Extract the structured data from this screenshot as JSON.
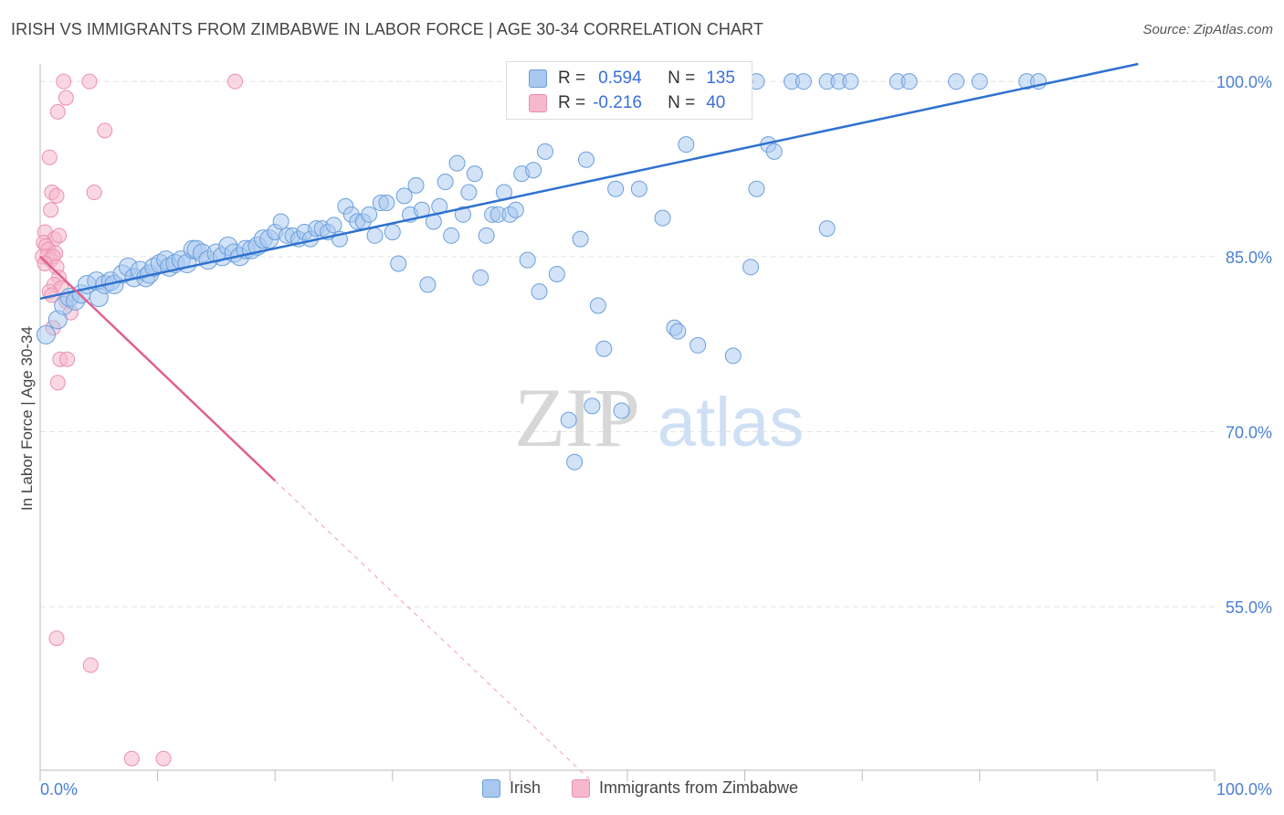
{
  "title": "IRISH VS IMMIGRANTS FROM ZIMBABWE IN LABOR FORCE | AGE 30-34 CORRELATION CHART",
  "source": "Source: ZipAtlas.com",
  "colors": {
    "irish_fill": "#a8c8f0",
    "irish_stroke": "#6a9fdc",
    "irish_line": "#2f72cf",
    "zim_fill": "#f6b8cc",
    "zim_stroke": "#ec8faf",
    "zim_line": "#e0608c",
    "axis_text": "#4a7fd4",
    "grid": "#e4e4e4"
  },
  "watermark": {
    "zip": "ZIP",
    "atlas": "atlas"
  },
  "stats": {
    "irish": {
      "r_label": "R =",
      "r_value": "0.594",
      "n_label": "N =",
      "n_value": "135"
    },
    "zim": {
      "r_label": "R =",
      "r_value": "-0.216",
      "n_label": "N =",
      "n_value": "40"
    }
  },
  "legend": {
    "irish": "Irish",
    "zim": "Immigrants from Zimbabwe"
  },
  "chart_data": {
    "type": "scatter",
    "title": "IRISH VS IMMIGRANTS FROM ZIMBABWE IN LABOR FORCE | AGE 30-34 CORRELATION CHART",
    "xlabel": "",
    "ylabel": "In Labor Force | Age 30-34",
    "xlim": [
      0,
      100
    ],
    "ylim": [
      41,
      101.5
    ],
    "x_ticks_labels": [
      "0.0%",
      "100.0%"
    ],
    "y_ticks": [
      55,
      70,
      85,
      100
    ],
    "y_tick_labels": [
      "55.0%",
      "70.0%",
      "85.0%",
      "100.0%"
    ],
    "grid": true,
    "series": [
      {
        "name": "Irish",
        "R": 0.594,
        "N": 135,
        "trend": {
          "x": [
            0,
            93.5
          ],
          "y": [
            81.4,
            101.5
          ]
        },
        "points": [
          [
            0.5,
            78.3
          ],
          [
            1.5,
            79.6
          ],
          [
            2,
            80.8
          ],
          [
            2.5,
            81.5
          ],
          [
            3,
            81.2
          ],
          [
            3.5,
            81.8
          ],
          [
            4,
            82.6
          ],
          [
            4.8,
            82.9
          ],
          [
            5,
            81.5
          ],
          [
            5.5,
            82.6
          ],
          [
            6,
            82.9
          ],
          [
            6.3,
            82.6
          ],
          [
            7,
            83.5
          ],
          [
            7.5,
            84.1
          ],
          [
            8,
            83.2
          ],
          [
            8.5,
            83.8
          ],
          [
            9,
            83.2
          ],
          [
            9.3,
            83.5
          ],
          [
            9.7,
            84.1
          ],
          [
            10.2,
            84.4
          ],
          [
            10.7,
            84.7
          ],
          [
            11,
            84.1
          ],
          [
            11.5,
            84.4
          ],
          [
            12,
            84.7
          ],
          [
            12.5,
            84.4
          ],
          [
            13,
            85.6
          ],
          [
            13.3,
            85.6
          ],
          [
            13.8,
            85.3
          ],
          [
            14.3,
            84.7
          ],
          [
            15,
            85.3
          ],
          [
            15.5,
            85.0
          ],
          [
            16,
            85.9
          ],
          [
            16.5,
            85.3
          ],
          [
            17,
            85.0
          ],
          [
            17.5,
            85.6
          ],
          [
            18,
            85.6
          ],
          [
            18.5,
            85.9
          ],
          [
            19,
            86.5
          ],
          [
            19.5,
            86.5
          ],
          [
            20,
            87.1
          ],
          [
            20.5,
            88.0
          ],
          [
            21,
            86.8
          ],
          [
            21.5,
            86.8
          ],
          [
            22,
            86.5
          ],
          [
            22.5,
            87.1
          ],
          [
            23,
            86.5
          ],
          [
            23.5,
            87.4
          ],
          [
            24,
            87.4
          ],
          [
            24.5,
            87.1
          ],
          [
            25,
            87.7
          ],
          [
            25.5,
            86.5
          ],
          [
            26,
            89.3
          ],
          [
            26.5,
            88.6
          ],
          [
            27,
            88.0
          ],
          [
            27.5,
            88.0
          ],
          [
            28,
            88.6
          ],
          [
            28.5,
            86.8
          ],
          [
            29,
            89.6
          ],
          [
            29.5,
            89.6
          ],
          [
            30,
            87.1
          ],
          [
            30.5,
            84.4
          ],
          [
            31,
            90.2
          ],
          [
            31.5,
            88.6
          ],
          [
            32,
            91.1
          ],
          [
            32.5,
            89.0
          ],
          [
            33,
            82.6
          ],
          [
            33.5,
            88.0
          ],
          [
            34,
            89.3
          ],
          [
            34.5,
            91.4
          ],
          [
            35,
            86.8
          ],
          [
            35.5,
            93.0
          ],
          [
            36,
            88.6
          ],
          [
            36.5,
            90.5
          ],
          [
            37,
            92.1
          ],
          [
            37.5,
            83.2
          ],
          [
            38,
            86.8
          ],
          [
            38.5,
            88.6
          ],
          [
            39,
            88.6
          ],
          [
            39.5,
            90.5
          ],
          [
            40,
            88.6
          ],
          [
            40.5,
            89.0
          ],
          [
            41,
            92.1
          ],
          [
            41.5,
            84.7
          ],
          [
            42,
            92.4
          ],
          [
            42.5,
            82.0
          ],
          [
            43,
            94.0
          ],
          [
            44,
            83.5
          ],
          [
            45,
            71.0
          ],
          [
            45.5,
            67.4
          ],
          [
            46,
            86.5
          ],
          [
            46.5,
            93.3
          ],
          [
            47,
            72.2
          ],
          [
            47.5,
            80.8
          ],
          [
            48,
            77.1
          ],
          [
            49,
            90.8
          ],
          [
            49.5,
            71.8
          ],
          [
            51,
            90.8
          ],
          [
            53,
            88.3
          ],
          [
            54,
            78.9
          ],
          [
            54.3,
            78.6
          ],
          [
            55,
            94.6
          ],
          [
            56,
            77.4
          ],
          [
            59,
            76.5
          ],
          [
            60.5,
            84.1
          ],
          [
            61,
            90.8
          ],
          [
            62,
            94.6
          ],
          [
            62.5,
            94.0
          ],
          [
            67,
            87.4
          ],
          [
            50,
            100
          ],
          [
            51,
            100
          ],
          [
            52,
            100
          ],
          [
            53,
            100
          ],
          [
            54,
            100
          ],
          [
            55,
            100
          ],
          [
            56,
            100
          ],
          [
            57,
            100
          ],
          [
            58,
            100
          ],
          [
            59,
            100
          ],
          [
            60,
            100
          ],
          [
            61,
            100
          ],
          [
            64,
            100
          ],
          [
            65,
            100
          ],
          [
            67,
            100
          ],
          [
            68,
            100
          ],
          [
            69,
            100
          ],
          [
            73,
            100
          ],
          [
            74,
            100
          ],
          [
            78,
            100
          ],
          [
            80,
            100
          ],
          [
            84,
            100
          ],
          [
            85,
            100
          ],
          [
            52,
            99.4
          ]
        ]
      },
      {
        "name": "Immigrants from Zimbabwe",
        "R": -0.216,
        "N": 40,
        "trend": {
          "x": [
            0,
            20
          ],
          "y": [
            85.0,
            65.8
          ]
        },
        "trend_extension": {
          "x": [
            20,
            47
          ],
          "y": [
            65.8,
            40.0
          ]
        },
        "points": [
          [
            2,
            100
          ],
          [
            4.2,
            100
          ],
          [
            16.6,
            100
          ],
          [
            2.2,
            98.6
          ],
          [
            1.5,
            97.4
          ],
          [
            5.5,
            95.8
          ],
          [
            0.8,
            93.5
          ],
          [
            1,
            90.5
          ],
          [
            1.4,
            90.2
          ],
          [
            4.6,
            90.5
          ],
          [
            0.9,
            89.0
          ],
          [
            0.4,
            87.1
          ],
          [
            1.2,
            86.5
          ],
          [
            1.6,
            86.8
          ],
          [
            0.3,
            86.2
          ],
          [
            0.5,
            85.9
          ],
          [
            0.7,
            85.6
          ],
          [
            1.3,
            85.3
          ],
          [
            0.6,
            85.0
          ],
          [
            0.2,
            85.0
          ],
          [
            0.9,
            84.7
          ],
          [
            1.1,
            85.0
          ],
          [
            0.4,
            84.4
          ],
          [
            1.4,
            84.1
          ],
          [
            1.6,
            83.2
          ],
          [
            1.2,
            82.6
          ],
          [
            1.8,
            82.3
          ],
          [
            0.8,
            82.0
          ],
          [
            1.0,
            81.7
          ],
          [
            2.2,
            81.2
          ],
          [
            2.6,
            80.2
          ],
          [
            1.1,
            78.9
          ],
          [
            1.7,
            76.2
          ],
          [
            2.3,
            76.2
          ],
          [
            1.5,
            74.2
          ],
          [
            1.4,
            52.3
          ],
          [
            4.3,
            50.0
          ],
          [
            7.8,
            42.0
          ],
          [
            10.5,
            42.0
          ]
        ]
      }
    ]
  }
}
